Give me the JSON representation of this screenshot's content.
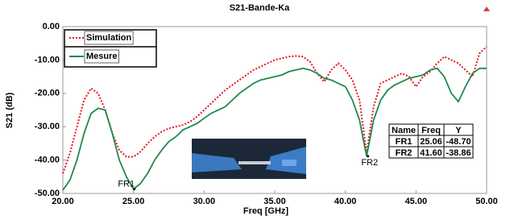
{
  "chart_data": {
    "type": "line",
    "title": "S21-Bande-Ka",
    "x_label": "Freq [GHz]",
    "y_label": "S21 (dB)",
    "x": [
      20,
      20.5,
      21,
      21.5,
      22,
      22.5,
      23,
      23.5,
      24,
      24.5,
      25,
      25.5,
      26,
      26.5,
      27,
      27.5,
      28,
      28.5,
      29,
      29.5,
      30,
      30.5,
      31,
      31.5,
      32,
      32.5,
      33,
      33.5,
      34,
      34.5,
      35,
      35.5,
      36,
      36.5,
      37,
      37.5,
      38,
      38.5,
      39,
      39.5,
      40,
      40.5,
      41,
      41.5,
      42,
      42.5,
      43,
      43.5,
      44,
      44.5,
      45,
      45.5,
      46,
      46.5,
      47,
      47.5,
      48,
      48.5,
      49,
      49.5,
      50
    ],
    "series": [
      {
        "name": "Simulation",
        "color": "#e8141c",
        "dashed": true,
        "values": [
          -44,
          -38,
          -30,
          -22,
          -18.5,
          -20,
          -25,
          -32,
          -37,
          -39,
          -39,
          -37.5,
          -35,
          -33,
          -31.5,
          -30.5,
          -30,
          -29.5,
          -28.5,
          -27,
          -25,
          -23,
          -21,
          -19,
          -17.5,
          -16,
          -14.5,
          -13,
          -12,
          -11,
          -10,
          -9.5,
          -9,
          -8.8,
          -9,
          -10.5,
          -14,
          -16.5,
          -13,
          -11,
          -13,
          -16,
          -22,
          -38,
          -24,
          -17,
          -16,
          -15,
          -14,
          -15,
          -18,
          -15,
          -13.5,
          -11,
          -9,
          -10,
          -11,
          -13,
          -15,
          -8,
          -6
        ]
      },
      {
        "name": "Mesure",
        "color": "#1f8a4c",
        "dashed": false,
        "values": [
          -49,
          -46,
          -40,
          -32,
          -26,
          -24.5,
          -25,
          -32,
          -40,
          -45,
          -48.7,
          -47,
          -44,
          -40,
          -37,
          -34.5,
          -33,
          -31,
          -30,
          -29,
          -27.5,
          -26,
          -25,
          -24,
          -22,
          -20,
          -18.5,
          -17,
          -16,
          -15.5,
          -15,
          -14.5,
          -13.5,
          -13,
          -12.5,
          -13,
          -14,
          -15.5,
          -16,
          -17,
          -18,
          -22,
          -28,
          -38.86,
          -28,
          -22,
          -19,
          -17.5,
          -16.5,
          -15.5,
          -15,
          -14.5,
          -13,
          -12.5,
          -15,
          -20,
          -22.5,
          -18,
          -14,
          -12.5,
          -12.5
        ]
      }
    ],
    "xlim": [
      20,
      50
    ],
    "ylim": [
      -50,
      0
    ],
    "xticks": [
      {
        "value": 20,
        "label": "20.00"
      },
      {
        "value": 25,
        "label": "25.00"
      },
      {
        "value": 30,
        "label": "30.00"
      },
      {
        "value": 35,
        "label": "35.00"
      },
      {
        "value": 40,
        "label": "40.00"
      },
      {
        "value": 45,
        "label": "45.00"
      },
      {
        "value": 50,
        "label": "50.00"
      }
    ],
    "yticks": [
      {
        "value": 0,
        "label": "0.00"
      },
      {
        "value": -10,
        "label": "-10.00"
      },
      {
        "value": -20,
        "label": "-20.00"
      },
      {
        "value": -30,
        "label": "-30.00"
      },
      {
        "value": -40,
        "label": "-40.00"
      },
      {
        "value": -50,
        "label": "-50.00"
      }
    ],
    "grid": false,
    "marker_table_header": [
      "Name",
      "Freq",
      "Y"
    ],
    "markers": [
      {
        "name": "FR1",
        "freq": 25.06,
        "y": -48.7,
        "freq_label": "25.06",
        "y_label": "-48.70"
      },
      {
        "name": "FR2",
        "freq": 41.6,
        "y": -38.86,
        "freq_label": "41.60",
        "y_label": "-38.86"
      }
    ]
  }
}
